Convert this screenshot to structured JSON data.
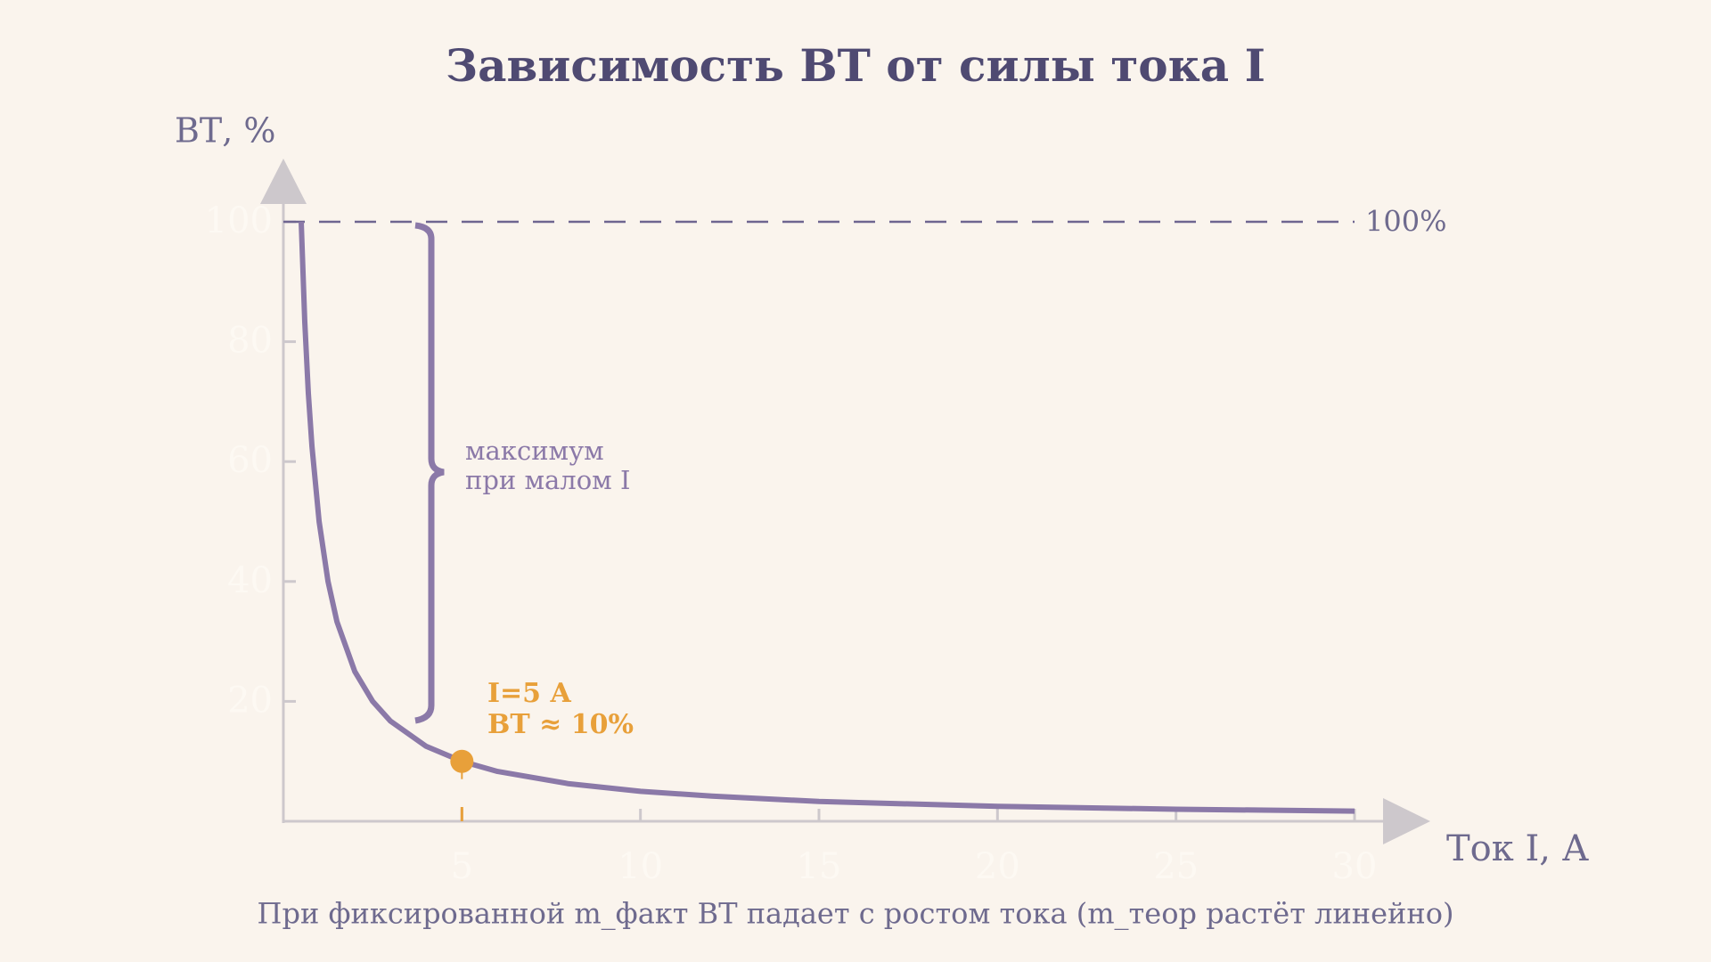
{
  "chart_data": {
    "type": "line",
    "title": "Зависимость ВТ от силы тока I",
    "xlabel": "Ток I, А",
    "ylabel": "ВТ, %",
    "caption": "При фиксированной m_факт ВТ падает с ростом тока (m_теор растёт линейно)",
    "x": [
      0.5,
      0.6,
      0.7,
      0.8,
      1,
      1.25,
      1.5,
      2,
      2.5,
      3,
      4,
      5,
      6,
      8,
      10,
      12,
      15,
      20,
      25,
      30
    ],
    "values": [
      100,
      83.3,
      71.4,
      62.5,
      50,
      40,
      33.3,
      25,
      20,
      16.7,
      12.5,
      10,
      8.3,
      6.25,
      5,
      4.2,
      3.3,
      2.5,
      2,
      1.7
    ],
    "color": "#8b79a8",
    "xlim": [
      0,
      30
    ],
    "xticks": [
      5,
      10,
      15,
      20,
      25,
      30
    ],
    "ylim": [
      0,
      100
    ],
    "yticks": [
      20,
      40,
      60,
      80,
      100
    ],
    "grid": false,
    "reference": {
      "value": 100,
      "label": "100%"
    },
    "brace_note": [
      "максимум",
      "при малом I"
    ],
    "highlight": {
      "x": 5,
      "y": 10,
      "color": "#e8a03a",
      "label": [
        "I=5 A",
        "ВТ ≈ 10%"
      ]
    }
  }
}
